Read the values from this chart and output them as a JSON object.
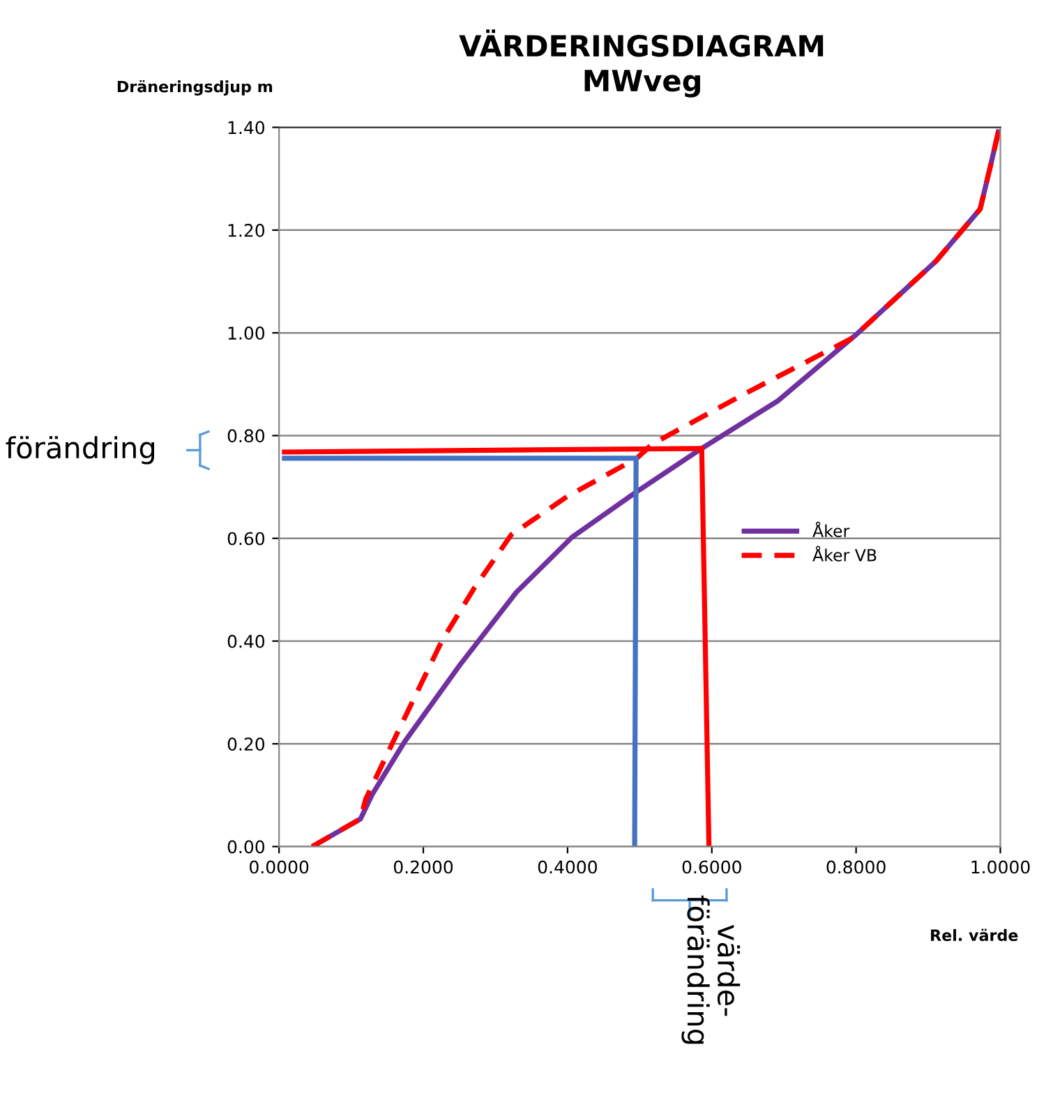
{
  "chart_data": {
    "type": "line",
    "title": "VÄRDERINGSDIAGRAM\nMWveg",
    "xlabel": "Rel. värde",
    "ylabel": "Dräneringsdjup m",
    "xlim": [
      0,
      1
    ],
    "ylim": [
      0,
      1.4
    ],
    "xticks": [
      {
        "value": 0,
        "label": "0.0000"
      },
      {
        "value": 0.2,
        "label": "0.2000"
      },
      {
        "value": 0.4,
        "label": "0.4000"
      },
      {
        "value": 0.6,
        "label": "0.6000"
      },
      {
        "value": 0.8,
        "label": "0.8000"
      },
      {
        "value": 1,
        "label": "1.0000"
      }
    ],
    "yticks": [
      {
        "value": 0,
        "label": "0.00"
      },
      {
        "value": 0.2,
        "label": "0.20"
      },
      {
        "value": 0.4,
        "label": "0.40"
      },
      {
        "value": 0.6,
        "label": "0.60"
      },
      {
        "value": 0.8,
        "label": "0.80"
      },
      {
        "value": 1,
        "label": "1.00"
      },
      {
        "value": 1.2,
        "label": "1.20"
      },
      {
        "value": 1.4,
        "label": "1.40"
      }
    ],
    "grid": "y",
    "legend": "right",
    "series": [
      {
        "name": "Åker",
        "color": "#7030a0",
        "line_style": "solid",
        "x": [
          0.046,
          0.113,
          0.129,
          0.174,
          0.251,
          0.329,
          0.406,
          0.496,
          0.586,
          0.692,
          0.802,
          0.911,
          0.972,
          0.988,
          0.998
        ],
        "values": [
          0,
          0.054,
          0.101,
          0.204,
          0.354,
          0.495,
          0.602,
          0.691,
          0.775,
          0.868,
          0.999,
          1.14,
          1.241,
          1.335,
          1.396
        ]
      },
      {
        "name": "Åker VB",
        "color": "#ff0000",
        "line_style": "dashed",
        "x": [
          0.046,
          0.113,
          0.12,
          0.155,
          0.226,
          0.271,
          0.322,
          0.399,
          0.496,
          0.518,
          0.641,
          0.795,
          0.911,
          0.972,
          0.988,
          0.998
        ],
        "values": [
          0,
          0.054,
          0.092,
          0.195,
          0.401,
          0.504,
          0.607,
          0.681,
          0.756,
          0.784,
          0.878,
          0.99,
          1.14,
          1.241,
          1.335,
          1.396
        ]
      },
      {
        "color": "#4472c4",
        "line_style": "solid",
        "x": [
          0.004,
          0.495,
          0.493
        ],
        "values": [
          0.756,
          0.756,
          0
        ]
      },
      {
        "color": "#ff0000",
        "line_style": "solid",
        "x": [
          0.004,
          0.586,
          0.596
        ],
        "values": [
          0.768,
          0.775,
          0
        ]
      }
    ],
    "annotations": [
      "förändring",
      "värde-\nförändring"
    ]
  }
}
